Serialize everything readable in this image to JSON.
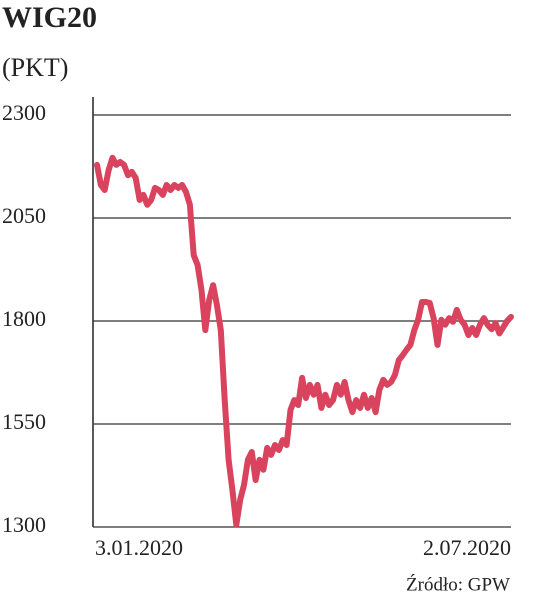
{
  "chart_data": {
    "type": "line",
    "title": "WIG20",
    "subtitle": "(PKT)",
    "source": "Źródło: GPW",
    "categories": [
      "3.01.2020",
      null,
      null,
      null,
      null,
      null,
      null,
      null,
      null,
      null,
      null,
      null,
      null,
      null,
      null,
      null,
      null,
      null,
      null,
      null,
      null,
      null,
      null,
      null,
      null,
      null,
      null,
      null,
      null,
      null,
      null,
      null,
      null,
      null,
      null,
      null,
      null,
      null,
      null,
      null,
      null,
      null,
      null,
      null,
      null,
      null,
      null,
      null,
      null,
      null,
      null,
      null,
      null,
      null,
      null,
      null,
      null,
      null,
      null,
      null,
      null,
      null,
      null,
      null,
      null,
      null,
      null,
      null,
      null,
      null,
      null,
      null,
      null,
      null,
      null,
      null,
      null,
      null,
      null,
      null,
      null,
      null,
      null,
      null,
      null,
      null,
      null,
      null,
      null,
      null,
      null,
      null,
      null,
      null,
      null,
      null,
      null,
      null,
      null,
      null,
      null,
      null,
      null,
      null,
      null,
      null,
      null,
      "2.07.2020"
    ],
    "series": [
      {
        "name": "WIG20",
        "color": "#d9435d",
        "values": [
          2179,
          2130,
          2118,
          2166,
          2196,
          2179,
          2186,
          2179,
          2154,
          2162,
          2147,
          2094,
          2106,
          2082,
          2094,
          2123,
          2118,
          2106,
          2130,
          2118,
          2130,
          2123,
          2130,
          2113,
          2082,
          1960,
          1936,
          1875,
          1778,
          1851,
          1887,
          1839,
          1778,
          1608,
          1463,
          1390,
          1305,
          1366,
          1402,
          1463,
          1482,
          1414,
          1463,
          1439,
          1492,
          1475,
          1499,
          1487,
          1511,
          1499,
          1584,
          1608,
          1596,
          1662,
          1613,
          1645,
          1621,
          1645,
          1589,
          1621,
          1596,
          1608,
          1645,
          1621,
          1652,
          1608,
          1579,
          1608,
          1589,
          1621,
          1589,
          1613,
          1579,
          1633,
          1657,
          1645,
          1652,
          1669,
          1705,
          1717,
          1730,
          1742,
          1778,
          1803,
          1846,
          1846,
          1844,
          1807,
          1742,
          1803,
          1791,
          1807,
          1798,
          1827,
          1803,
          1791,
          1766,
          1783,
          1766,
          1791,
          1807,
          1790,
          1780,
          1795,
          1770,
          1785,
          1800,
          1810
        ]
      }
    ],
    "ylim": [
      1300,
      2300
    ],
    "yticks": [
      1300,
      1550,
      1800,
      2050,
      2300
    ],
    "grid": true
  }
}
